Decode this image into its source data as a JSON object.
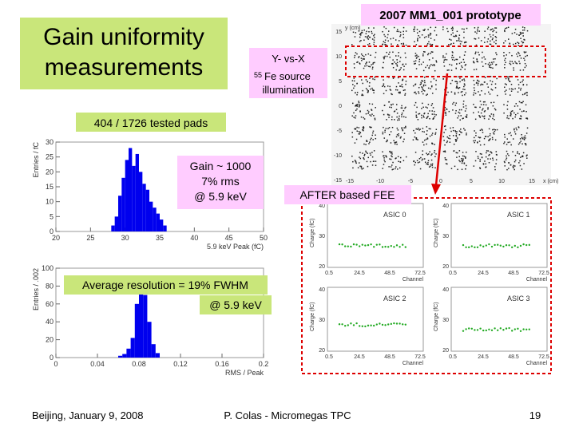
{
  "title": [
    "Gain uniformity",
    "measurements"
  ],
  "prototype_label": "2007 MM1_001 prototype",
  "yx_label": {
    "line1": "Y- vs-X",
    "isotope_mass": "55",
    "line2": "Fe source",
    "line3": "illumination"
  },
  "pads_label": "404  / 1726 tested pads",
  "gain_note": [
    "Gain ~ 1000",
    "7% rms",
    "@ 5.9 keV"
  ],
  "after_label": "AFTER based FEE",
  "resolution_note": [
    "Average resolution = 19% FWHM",
    "@ 5.9 keV"
  ],
  "footer": {
    "left": "Beijing, January 9, 2008",
    "center": "P. Colas - Micromegas TPC",
    "page": "19"
  },
  "scatter_axes": {
    "ticks": [
      "-15",
      "-10",
      "-5",
      "0",
      "5",
      "10",
      "15"
    ],
    "x_label": "x (cm)",
    "y_label": "y (cm)"
  },
  "asic_panels": {
    "labels": [
      "ASIC 0",
      "ASIC 1",
      "ASIC 2",
      "ASIC 3"
    ],
    "y_label": "Charge (fC)",
    "x_label": "Channel",
    "yticks": [
      "40",
      "30",
      "20"
    ],
    "xticks": [
      "0.5",
      "24.5",
      "48.5",
      "72.5"
    ]
  },
  "gain_histogram": {
    "type": "histogram",
    "y_label": "Entries / fC",
    "x_label": "5.9 keV Peak (fC)",
    "bins": [
      28,
      28.5,
      29,
      29.5,
      30,
      30.5,
      31,
      31.5,
      32,
      32.5,
      33,
      33.5,
      34,
      34.5,
      35,
      35.5,
      36
    ],
    "counts": [
      2,
      5,
      12,
      18,
      24,
      28,
      22,
      26,
      20,
      16,
      14,
      10,
      8,
      6,
      4,
      2
    ],
    "xlim": [
      20,
      50
    ],
    "xticks": [
      20,
      25,
      30,
      35,
      40,
      45,
      50
    ],
    "ylim": [
      0,
      30
    ],
    "yticks": [
      0,
      5,
      10,
      15,
      20,
      25,
      30
    ],
    "color": "#0000ee"
  },
  "resolution_histogram": {
    "type": "histogram",
    "y_label": "Entries / .002",
    "x_label": "RMS / Peak",
    "bins": [
      0.06,
      0.064,
      0.068,
      0.072,
      0.076,
      0.08,
      0.084,
      0.088,
      0.092,
      0.096,
      0.1
    ],
    "counts": [
      2,
      4,
      10,
      22,
      60,
      88,
      70,
      40,
      15,
      5
    ],
    "xlim": [
      0,
      0.2
    ],
    "xticks": [
      0,
      0.04,
      0.08,
      0.12,
      0.16,
      0.2
    ],
    "ylim": [
      0,
      100
    ],
    "yticks": [
      0,
      20,
      40,
      60,
      80,
      100
    ],
    "color": "#0000ee"
  }
}
